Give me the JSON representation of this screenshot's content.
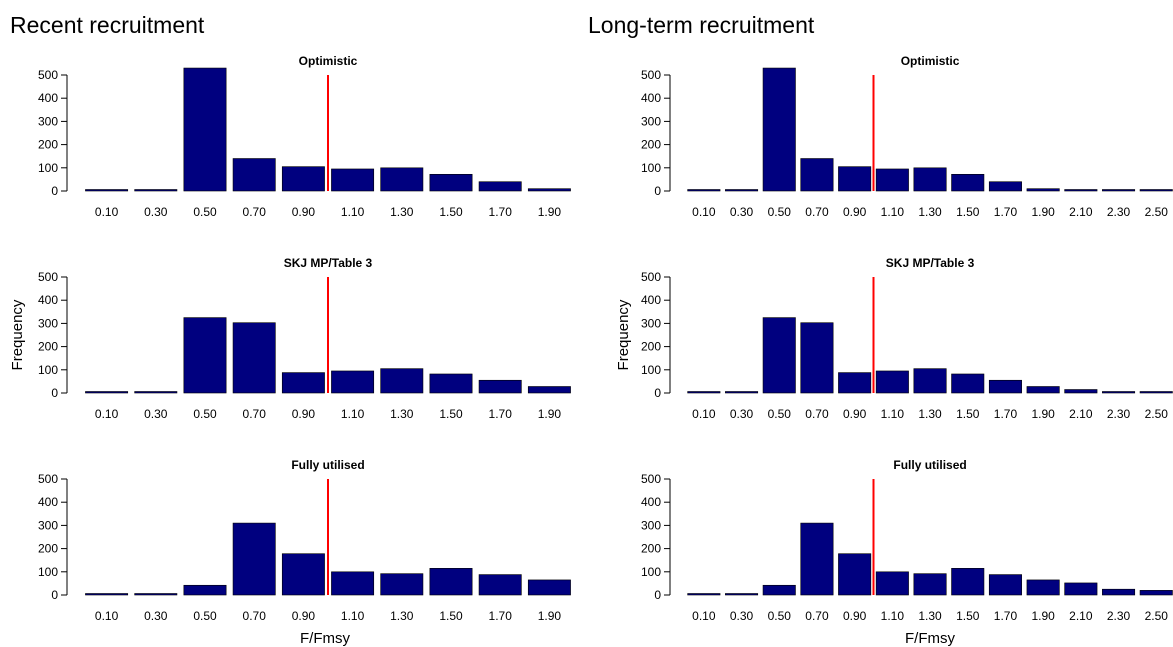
{
  "columns": [
    "Recent recruitment",
    "Long-term recruitment"
  ],
  "colors": {
    "bar": "#00007F",
    "ref_line": "#FF0000",
    "axis": "#000000"
  },
  "chart_data": [
    {
      "type": "bar",
      "title": "Optimistic",
      "column": "Recent recruitment",
      "categories": [
        "0.10",
        "0.30",
        "0.50",
        "0.70",
        "0.90",
        "1.10",
        "1.30",
        "1.50",
        "1.70",
        "1.90"
      ],
      "values": [
        0,
        0,
        530,
        140,
        105,
        95,
        100,
        72,
        40,
        10
      ],
      "ylim": [
        0,
        500
      ],
      "yticks": [
        0,
        100,
        200,
        300,
        400,
        500
      ],
      "xlabel": "",
      "ylabel": "",
      "ref_line_x": 1.0
    },
    {
      "type": "bar",
      "title": "SKJ MP/Table 3",
      "column": "Recent recruitment",
      "categories": [
        "0.10",
        "0.30",
        "0.50",
        "0.70",
        "0.90",
        "1.10",
        "1.30",
        "1.50",
        "1.70",
        "1.90"
      ],
      "values": [
        0,
        0,
        325,
        303,
        88,
        95,
        105,
        82,
        55,
        28
      ],
      "ylim": [
        0,
        500
      ],
      "yticks": [
        0,
        100,
        200,
        300,
        400,
        500
      ],
      "xlabel": "",
      "ylabel": "Frequency",
      "ref_line_x": 1.0
    },
    {
      "type": "bar",
      "title": "Fully utilised",
      "column": "Recent recruitment",
      "categories": [
        "0.10",
        "0.30",
        "0.50",
        "0.70",
        "0.90",
        "1.10",
        "1.30",
        "1.50",
        "1.70",
        "1.90"
      ],
      "values": [
        0,
        0,
        42,
        310,
        178,
        100,
        92,
        115,
        88,
        65
      ],
      "ylim": [
        0,
        500
      ],
      "yticks": [
        0,
        100,
        200,
        300,
        400,
        500
      ],
      "xlabel": "F/Fmsy",
      "ylabel": "",
      "ref_line_x": 1.0
    },
    {
      "type": "bar",
      "title": "Optimistic",
      "column": "Long-term recruitment",
      "categories": [
        "0.10",
        "0.30",
        "0.50",
        "0.70",
        "0.90",
        "1.10",
        "1.30",
        "1.50",
        "1.70",
        "1.90",
        "2.10",
        "2.30",
        "2.50"
      ],
      "values": [
        0,
        0,
        530,
        140,
        105,
        95,
        100,
        72,
        40,
        10,
        0,
        0,
        0
      ],
      "ylim": [
        0,
        500
      ],
      "yticks": [
        0,
        100,
        200,
        300,
        400,
        500
      ],
      "xlabel": "",
      "ylabel": "",
      "ref_line_x": 1.0
    },
    {
      "type": "bar",
      "title": "SKJ MP/Table 3",
      "column": "Long-term recruitment",
      "categories": [
        "0.10",
        "0.30",
        "0.50",
        "0.70",
        "0.90",
        "1.10",
        "1.30",
        "1.50",
        "1.70",
        "1.90",
        "2.10",
        "2.30",
        "2.50"
      ],
      "values": [
        0,
        0,
        325,
        303,
        88,
        95,
        105,
        82,
        55,
        28,
        15,
        0,
        0
      ],
      "ylim": [
        0,
        500
      ],
      "yticks": [
        0,
        100,
        200,
        300,
        400,
        500
      ],
      "xlabel": "",
      "ylabel": "Frequency",
      "ref_line_x": 1.0
    },
    {
      "type": "bar",
      "title": "Fully utilised",
      "column": "Long-term recruitment",
      "categories": [
        "0.10",
        "0.30",
        "0.50",
        "0.70",
        "0.90",
        "1.10",
        "1.30",
        "1.50",
        "1.70",
        "1.90",
        "2.10",
        "2.30",
        "2.50"
      ],
      "values": [
        0,
        0,
        42,
        310,
        178,
        100,
        92,
        115,
        88,
        65,
        52,
        25,
        20
      ],
      "ylim": [
        0,
        500
      ],
      "yticks": [
        0,
        100,
        200,
        300,
        400,
        500
      ],
      "xlabel": "F/Fmsy",
      "ylabel": "",
      "ref_line_x": 1.0
    }
  ]
}
